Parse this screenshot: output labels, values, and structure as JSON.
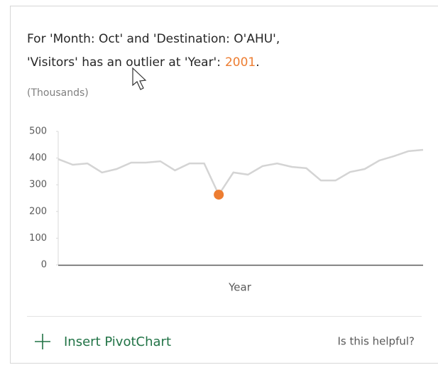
{
  "card": {
    "title_line1": "For 'Month: Oct' and 'Destination: O'AHU',",
    "title_line2": "'Visitors' has an outlier at 'Year':",
    "title_value": "2001",
    "title_end": ".",
    "action": "Insert PivotChart",
    "feedback": "Is this helpful?"
  },
  "chart_data": {
    "type": "line",
    "subtitle": "(Thousands)",
    "x_label": "Year",
    "values": [
      396,
      375,
      380,
      346,
      359,
      383,
      383,
      388,
      354,
      380,
      380,
      263,
      346,
      338,
      370,
      380,
      367,
      362,
      316,
      316,
      348,
      359,
      391,
      407,
      426,
      431
    ],
    "color": "#d4d4d4",
    "highlight": {
      "index": 11,
      "color": "#ed7d31"
    },
    "ylim": [
      0,
      500
    ],
    "yticks": [
      0,
      100,
      200,
      300,
      400,
      500
    ]
  }
}
